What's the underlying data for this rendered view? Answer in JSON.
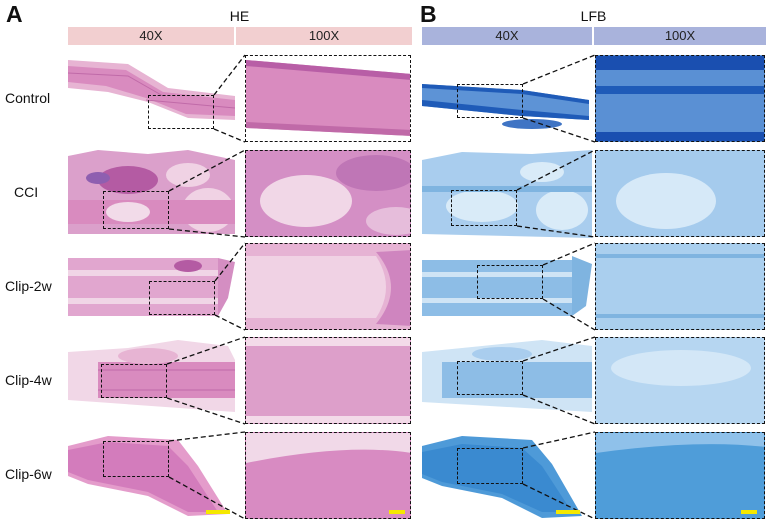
{
  "panels": [
    {
      "letter": "A",
      "stain": "HE",
      "magnifications": [
        "40X",
        "100X"
      ]
    },
    {
      "letter": "B",
      "stain": "LFB",
      "magnifications": [
        "40X",
        "100X"
      ]
    }
  ],
  "rows": [
    "Control",
    "CCI",
    "Clip-2w",
    "Clip-4w",
    "Clip-6w"
  ],
  "colors": {
    "he_header": "#f2cfd0",
    "lfb_header": "#a9b3dc",
    "he_tissue": "#d98bbf",
    "he_tissue_dark": "#b45ba3",
    "lfb_tissue": "#7fb4e0",
    "lfb_tissue_dark": "#1f5bb8",
    "scalebar": "#f5e800"
  }
}
